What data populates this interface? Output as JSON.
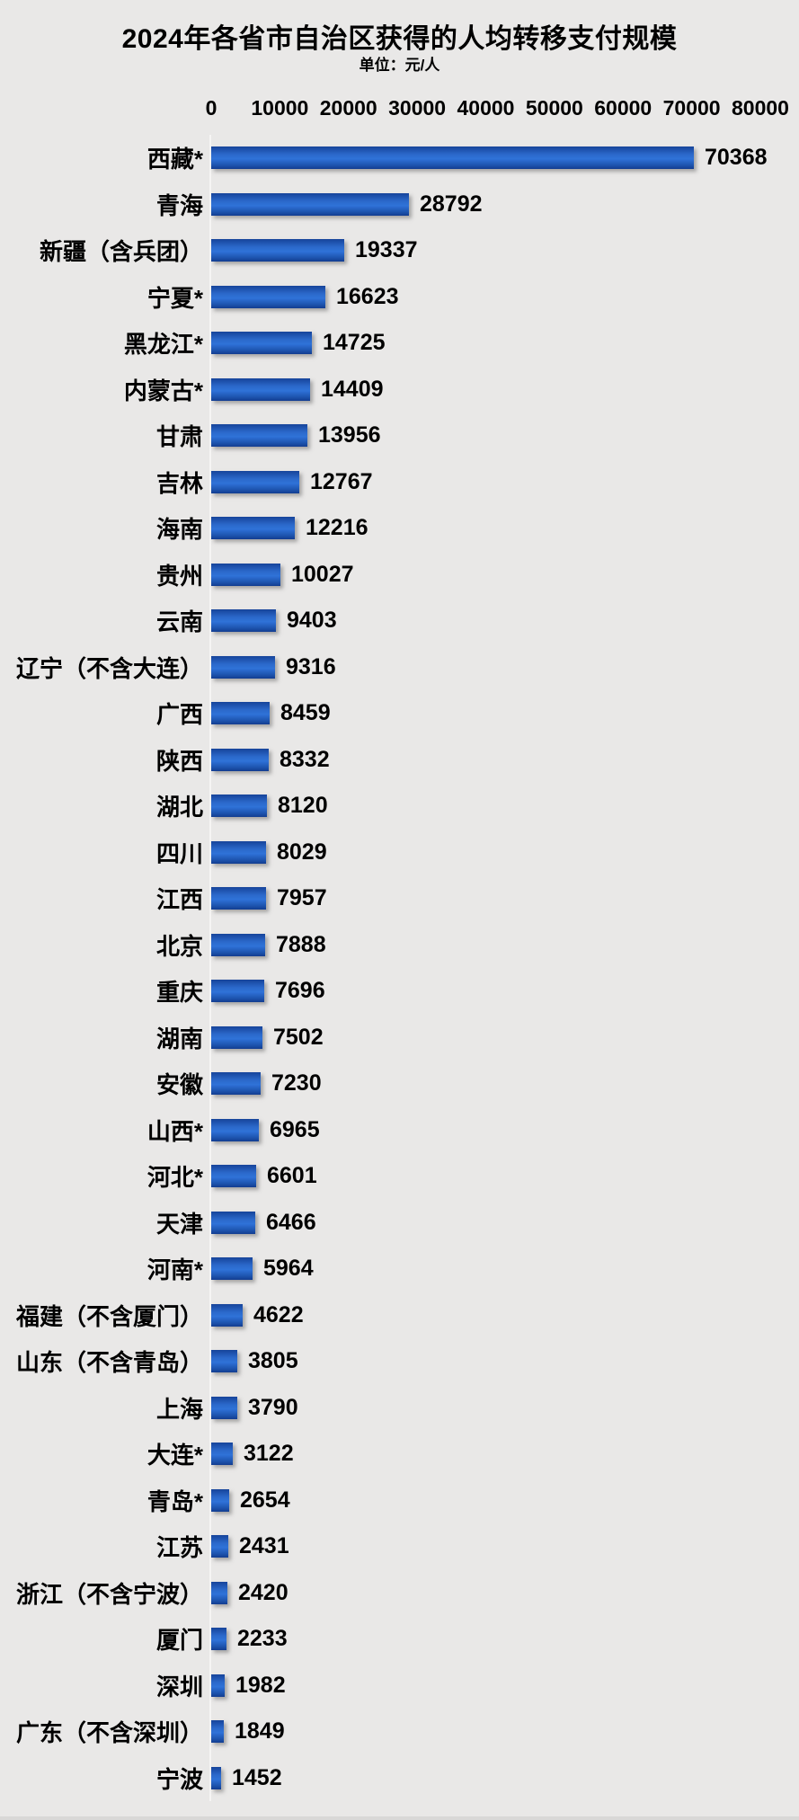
{
  "page": {
    "background": "#e9e8e7",
    "axis_line_color": "#f6f5f4",
    "text_color": "#000000"
  },
  "chart_data": {
    "type": "bar",
    "orientation": "horizontal",
    "title": "2024年各省市自治区获得的人均转移支付规模",
    "subtitle": "单位：元/人",
    "unit": "元/人",
    "xlim": [
      0,
      80000
    ],
    "x_ticks": [
      "0",
      "10000",
      "20000",
      "30000",
      "40000",
      "50000",
      "60000",
      "70000",
      "80000"
    ],
    "grid": false,
    "legend": false,
    "bar_gradient": [
      "#16449a",
      "#2b68ca",
      "#2f72d8",
      "#1c52ab",
      "#123c90"
    ],
    "categories": [
      "西藏*",
      "青海",
      "新疆（含兵团）",
      "宁夏*",
      "黑龙江*",
      "内蒙古*",
      "甘肃",
      "吉林",
      "海南",
      "贵州",
      "云南",
      "辽宁（不含大连）",
      "广西",
      "陕西",
      "湖北",
      "四川",
      "江西",
      "北京",
      "重庆",
      "湖南",
      "安徽",
      "山西*",
      "河北*",
      "天津",
      "河南*",
      "福建（不含厦门）",
      "山东（不含青岛）",
      "上海",
      "大连*",
      "青岛*",
      "江苏",
      "浙江（不含宁波）",
      "厦门",
      "深圳",
      "广东（不含深圳）",
      "宁波"
    ],
    "values": [
      70368,
      28792,
      19337,
      16623,
      14725,
      14409,
      13956,
      12767,
      12216,
      10027,
      9403,
      9316,
      8459,
      8332,
      8120,
      8029,
      7957,
      7888,
      7696,
      7502,
      7230,
      6965,
      6601,
      6466,
      5964,
      4622,
      3805,
      3790,
      3122,
      2654,
      2431,
      2420,
      2233,
      1982,
      1849,
      1452
    ]
  }
}
